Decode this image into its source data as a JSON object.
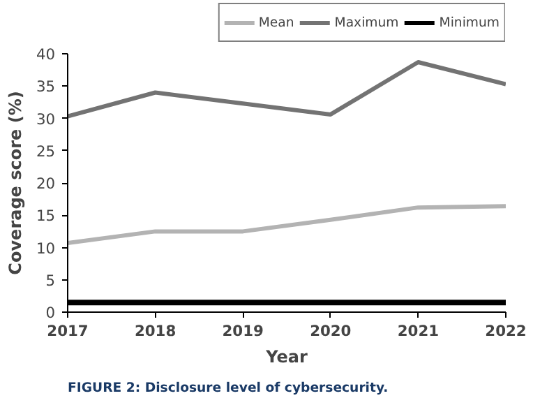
{
  "chart_data": {
    "type": "line",
    "xlabel": "Year",
    "ylabel": "Coverage score (%)",
    "x": [
      2017,
      2018,
      2019,
      2020,
      2021,
      2022
    ],
    "series": [
      {
        "name": "Mean",
        "color": "#b3b3b3",
        "values": [
          10.7,
          12.5,
          12.5,
          14.3,
          16.2,
          16.4
        ]
      },
      {
        "name": "Maximum",
        "color": "#737373",
        "values": [
          30.3,
          34.0,
          32.3,
          30.6,
          38.7,
          35.3
        ]
      },
      {
        "name": "Minimum",
        "color": "#000000",
        "values": [
          1.5,
          1.5,
          1.5,
          1.5,
          1.5,
          1.5
        ]
      }
    ],
    "xlim": [
      2017,
      2022
    ],
    "xticks": [
      2017,
      2018,
      2019,
      2020,
      2021,
      2022
    ],
    "ylim": [
      0,
      40
    ],
    "yticks": [
      0,
      5,
      10,
      15,
      20,
      25,
      30,
      35,
      40
    ],
    "grid": false,
    "legend": "top right",
    "marker": "none",
    "line_style": "solid",
    "annotations": [
      "FIGURE 2: Disclosure level of cybersecurity."
    ]
  }
}
